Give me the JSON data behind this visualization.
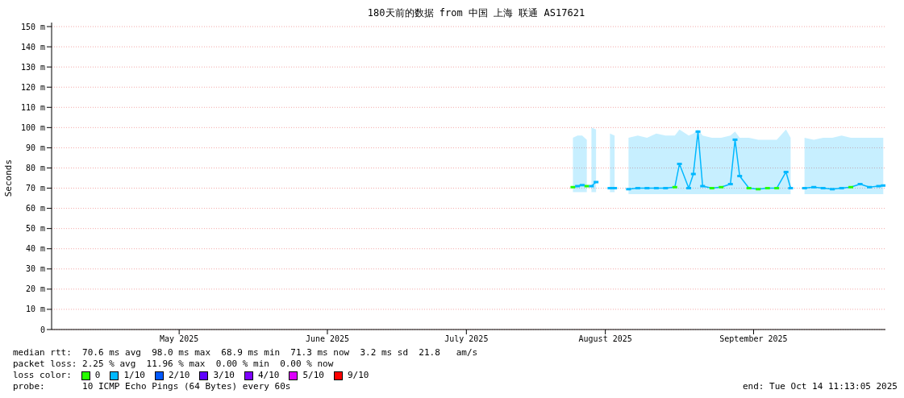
{
  "chart_data": {
    "type": "scatter",
    "title": "180天前的数据 from 中国 上海 联通 AS17621",
    "ylabel": "Seconds",
    "x": [
      "2025-08-08",
      "2025-08-09",
      "2025-08-10",
      "2025-08-11",
      "2025-08-11T18:00",
      "2025-08-12",
      "2025-08-13",
      "2025-08-14",
      "2025-08-16",
      "2025-08-17",
      "2025-08-18",
      "2025-08-20",
      "2025-08-22",
      "2025-08-24",
      "2025-08-26",
      "2025-08-28",
      "2025-08-30",
      "2025-08-31",
      "2025-09-02",
      "2025-09-03",
      "2025-09-04",
      "2025-09-05",
      "2025-09-07",
      "2025-09-09",
      "2025-09-11",
      "2025-09-12",
      "2025-09-13",
      "2025-09-15",
      "2025-09-17",
      "2025-09-19",
      "2025-09-21",
      "2025-09-23",
      "2025-09-24",
      "2025-09-26",
      "2025-09-27",
      "2025-09-29",
      "2025-10-01",
      "2025-10-03",
      "2025-10-05",
      "2025-10-07",
      "2025-10-09",
      "2025-10-11",
      "2025-10-13",
      "2025-10-14"
    ],
    "series": [
      {
        "type": "line",
        "color": "#00b8ff",
        "marker": "none",
        "values": [
          70.5,
          71,
          71.5,
          71,
          null,
          71,
          73,
          null,
          70,
          70,
          null,
          69.5,
          70,
          70,
          70,
          70,
          70.5,
          82,
          70,
          77,
          98,
          71,
          70,
          70.5,
          72,
          94,
          76,
          70,
          69.5,
          70,
          70,
          78,
          70,
          null,
          70,
          70.5,
          70,
          69.5,
          70,
          70.5,
          72,
          70.5,
          71,
          71.3
        ],
        "lower": [
          68,
          68,
          68,
          68,
          null,
          68,
          68,
          null,
          68,
          68,
          null,
          67,
          67,
          67,
          67,
          67,
          67,
          67,
          67,
          67,
          67,
          67,
          67,
          67,
          67,
          67,
          67,
          67,
          67,
          67,
          67,
          67,
          67,
          null,
          67,
          67,
          67,
          67,
          67,
          67,
          67,
          67,
          67,
          67
        ],
        "upper": [
          95,
          96,
          96,
          94,
          null,
          100,
          99,
          null,
          97,
          96,
          null,
          95,
          96,
          95,
          97,
          96,
          96,
          99,
          96,
          97,
          99,
          96,
          95,
          95,
          96,
          98,
          95,
          95,
          94,
          94,
          94,
          99,
          95,
          null,
          95,
          94,
          95,
          95,
          96,
          95,
          95,
          95,
          95,
          95
        ]
      },
      {
        "name": "0",
        "color": "#26ff00",
        "values": [
          70.5,
          null,
          null,
          71,
          null,
          null,
          null,
          null,
          null,
          null,
          null,
          null,
          null,
          null,
          null,
          null,
          70.5,
          null,
          null,
          null,
          null,
          null,
          70,
          70.5,
          null,
          null,
          null,
          70,
          69.5,
          70,
          70,
          null,
          null,
          null,
          null,
          null,
          null,
          null,
          null,
          70.5,
          null,
          null,
          null,
          null
        ]
      },
      {
        "name": "1/10",
        "color": "#00b8ff",
        "values": [
          null,
          71,
          71.5,
          null,
          null,
          71,
          73,
          null,
          70,
          70,
          null,
          69.5,
          70,
          70,
          70,
          70,
          null,
          82,
          70,
          77,
          98,
          71,
          null,
          null,
          72,
          94,
          76,
          null,
          null,
          null,
          null,
          78,
          70,
          null,
          70,
          70.5,
          70,
          69.5,
          70,
          null,
          72,
          70.5,
          71,
          71.3
        ]
      },
      {
        "name": "2/10",
        "color": "#0059ff",
        "values": [
          null,
          null,
          null,
          null,
          null,
          null,
          null,
          null,
          null,
          null,
          null,
          null,
          null,
          null,
          null,
          null,
          null,
          null,
          null,
          null,
          null,
          null,
          null,
          null,
          null,
          null,
          null,
          null,
          null,
          null,
          null,
          null,
          null,
          null,
          null,
          null,
          null,
          null,
          null,
          null,
          null,
          null,
          null,
          null
        ]
      },
      {
        "name": "3/10",
        "color": "#5e00ff",
        "values": [
          null,
          null,
          null,
          null,
          null,
          null,
          null,
          null,
          null,
          null,
          null,
          null,
          null,
          null,
          null,
          null,
          null,
          null,
          null,
          null,
          null,
          null,
          null,
          null,
          null,
          null,
          null,
          null,
          null,
          null,
          null,
          null,
          null,
          null,
          null,
          null,
          null,
          null,
          null,
          null,
          null,
          null,
          null,
          null
        ]
      },
      {
        "name": "4/10",
        "color": "#7e00ff",
        "values": [
          null,
          null,
          null,
          null,
          null,
          null,
          null,
          null,
          null,
          null,
          null,
          null,
          null,
          null,
          null,
          null,
          null,
          null,
          null,
          null,
          null,
          null,
          null,
          null,
          null,
          null,
          null,
          null,
          null,
          null,
          null,
          null,
          null,
          null,
          null,
          null,
          null,
          null,
          null,
          null,
          null,
          null,
          null,
          null
        ]
      },
      {
        "name": "5/10",
        "color": "#dd00ff",
        "values": [
          null,
          null,
          null,
          null,
          null,
          null,
          null,
          null,
          null,
          null,
          null,
          null,
          null,
          null,
          null,
          null,
          null,
          null,
          null,
          null,
          null,
          null,
          null,
          null,
          null,
          null,
          null,
          null,
          null,
          null,
          null,
          null,
          null,
          null,
          null,
          null,
          null,
          null,
          null,
          null,
          null,
          null,
          null,
          null
        ]
      },
      {
        "name": "9/10",
        "color": "#ff0000",
        "values": [
          null,
          null,
          null,
          null,
          null,
          null,
          null,
          null,
          null,
          null,
          null,
          null,
          null,
          null,
          null,
          null,
          null,
          null,
          null,
          null,
          null,
          null,
          null,
          null,
          null,
          null,
          null,
          null,
          null,
          null,
          null,
          null,
          null,
          null,
          null,
          null,
          null,
          null,
          null,
          null,
          null,
          null,
          null,
          null
        ]
      }
    ],
    "marker": "square",
    "legend": "bottom",
    "legend_title": "loss color:",
    "xlim": [
      "2025-04-17T11:13",
      "2025-10-14T11:13"
    ],
    "xticks": [
      {
        "value": "2025-05-15",
        "label": "May 2025"
      },
      {
        "value": "2025-06-16",
        "label": "June 2025"
      },
      {
        "value": "2025-07-16",
        "label": "July 2025"
      },
      {
        "value": "2025-08-15",
        "label": "August 2025"
      },
      {
        "value": "2025-09-16",
        "label": "September 2025"
      }
    ],
    "ylim": [
      0,
      152
    ],
    "yticks": [
      0,
      {
        "value": 10,
        "label": "10 m"
      },
      {
        "value": 20,
        "label": "20 m"
      },
      {
        "value": 30,
        "label": "30 m"
      },
      {
        "value": 40,
        "label": "40 m"
      },
      {
        "value": 50,
        "label": "50 m"
      },
      {
        "value": 60,
        "label": "60 m"
      },
      {
        "value": 70,
        "label": "70 m"
      },
      {
        "value": 80,
        "label": "80 m"
      },
      {
        "value": 90,
        "label": "90 m"
      },
      {
        "value": 100,
        "label": "100 m"
      },
      {
        "value": 110,
        "label": "110 m"
      },
      {
        "value": 120,
        "label": "120 m"
      },
      {
        "value": 130,
        "label": "130 m"
      },
      {
        "value": 140,
        "label": "140 m"
      },
      {
        "value": 150,
        "label": "150 m"
      }
    ],
    "grid": "y",
    "annotations": [
      "median rtt:  70.6 ms avg  98.0 ms max  68.9 ms min  71.3 ms now  3.2 ms sd  21.8   am/s",
      "packet loss: 2.25 % avg  11.96 % max  0.00 % min  0.00 % now",
      "probe:       10 ICMP Echo Pings (64 Bytes) every 60s",
      "end: Tue Oct 14 11:13:05 2025"
    ]
  }
}
